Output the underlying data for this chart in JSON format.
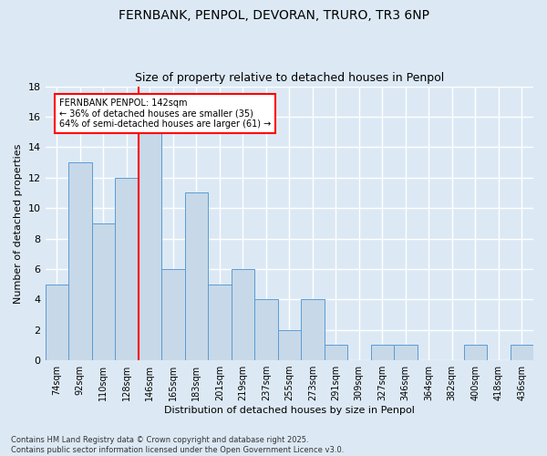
{
  "title_line1": "FERNBANK, PENPOL, DEVORAN, TRURO, TR3 6NP",
  "title_line2": "Size of property relative to detached houses in Penpol",
  "xlabel": "Distribution of detached houses by size in Penpol",
  "ylabel": "Number of detached properties",
  "categories": [
    "74sqm",
    "92sqm",
    "110sqm",
    "128sqm",
    "146sqm",
    "165sqm",
    "183sqm",
    "201sqm",
    "219sqm",
    "237sqm",
    "255sqm",
    "273sqm",
    "291sqm",
    "309sqm",
    "327sqm",
    "346sqm",
    "364sqm",
    "382sqm",
    "400sqm",
    "418sqm",
    "436sqm"
  ],
  "values": [
    5,
    13,
    9,
    12,
    15,
    6,
    11,
    5,
    6,
    4,
    2,
    4,
    1,
    0,
    1,
    1,
    0,
    0,
    1,
    0,
    1
  ],
  "bar_color": "#c7d9e8",
  "bar_edge_color": "#5b9bd5",
  "vline_x": 3.5,
  "vline_color": "red",
  "annotation_text": "FERNBANK PENPOL: 142sqm\n← 36% of detached houses are smaller (35)\n64% of semi-detached houses are larger (61) →",
  "annotation_box_color": "white",
  "annotation_box_edge_color": "red",
  "ylim": [
    0,
    18
  ],
  "yticks": [
    0,
    2,
    4,
    6,
    8,
    10,
    12,
    14,
    16,
    18
  ],
  "background_color": "#dce9f5",
  "grid_color": "white",
  "footer_text": "Contains HM Land Registry data © Crown copyright and database right 2025.\nContains public sector information licensed under the Open Government Licence v3.0."
}
